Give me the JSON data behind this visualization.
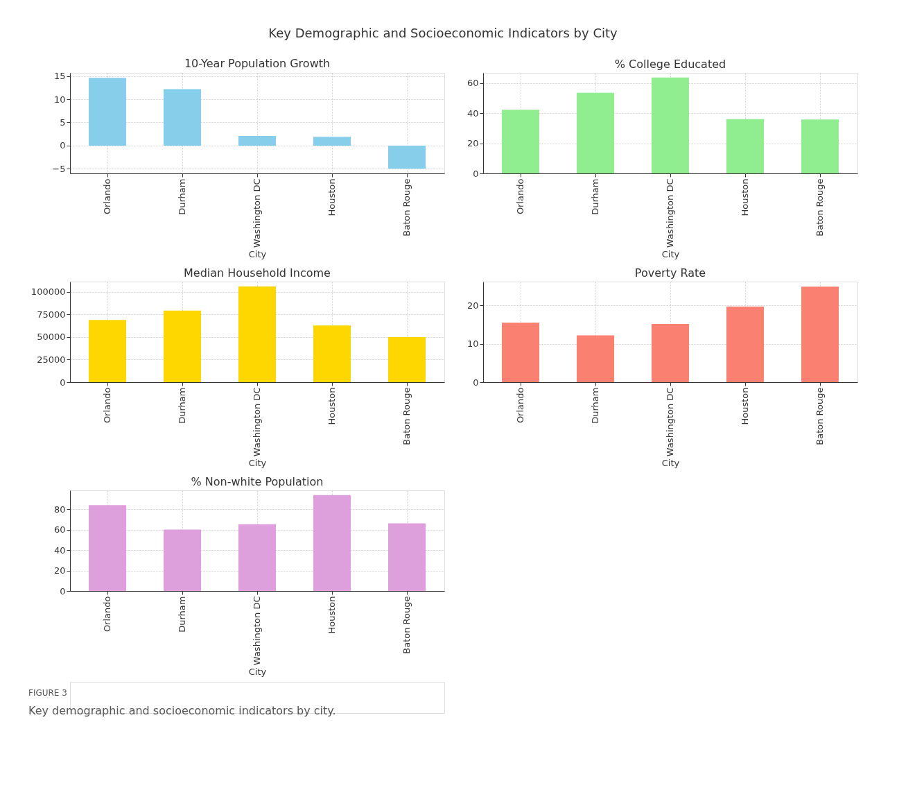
{
  "chart_data": [
    {
      "type": "bar",
      "title": "10-Year Population Growth",
      "xlabel": "City",
      "categories": [
        "Orlando",
        "Durham",
        "Washington DC",
        "Houston",
        "Baton Rouge"
      ],
      "values": [
        14.6,
        12.2,
        2.1,
        1.9,
        -5.0
      ],
      "color": "#87ceeb",
      "ylim": [
        -6,
        15.7
      ],
      "yticks": [
        -5,
        0,
        5,
        10,
        15
      ],
      "grid": true,
      "annotations": [
        "Key Demographic and Socioeconomic Indicators by City"
      ]
    },
    {
      "type": "bar",
      "title": "% College Educated",
      "xlabel": "City",
      "categories": [
        "Orlando",
        "Durham",
        "Washington DC",
        "Houston",
        "Baton Rouge"
      ],
      "values": [
        42.3,
        53.5,
        63.7,
        36.0,
        35.8
      ],
      "color": "#90ee90",
      "ylim": [
        0,
        66.8
      ],
      "yticks": [
        0,
        20,
        40,
        60
      ],
      "grid": true
    },
    {
      "type": "bar",
      "title": "Median Household Income",
      "xlabel": "City",
      "categories": [
        "Orlando",
        "Durham",
        "Washington DC",
        "Houston",
        "Baton Rouge"
      ],
      "values": [
        69000,
        79400,
        106200,
        62900,
        50000
      ],
      "color": "#ffd700",
      "ylim": [
        0,
        111500
      ],
      "yticks": [
        0,
        25000,
        50000,
        75000,
        100000
      ],
      "grid": true
    },
    {
      "type": "bar",
      "title": "Poverty Rate",
      "xlabel": "City",
      "categories": [
        "Orlando",
        "Durham",
        "Washington DC",
        "Houston",
        "Baton Rouge"
      ],
      "values": [
        15.5,
        12.2,
        15.2,
        19.7,
        24.9
      ],
      "color": "#fa8072",
      "ylim": [
        0,
        26.2
      ],
      "yticks": [
        0,
        10,
        20
      ],
      "grid": true
    },
    {
      "type": "bar",
      "title": "% Non-white Population",
      "xlabel": "City",
      "categories": [
        "Orlando",
        "Durham",
        "Washington DC",
        "Houston",
        "Baton Rouge"
      ],
      "values": [
        84,
        60,
        65.3,
        93.9,
        66.1
      ],
      "color": "#dda0dd",
      "ylim": [
        0,
        98.4
      ],
      "yticks": [
        0,
        20,
        40,
        60,
        80
      ],
      "grid": true,
      "annotations": [
        "FIGURE 3",
        "Key demographic and socioeconomic indicators by city."
      ]
    }
  ]
}
